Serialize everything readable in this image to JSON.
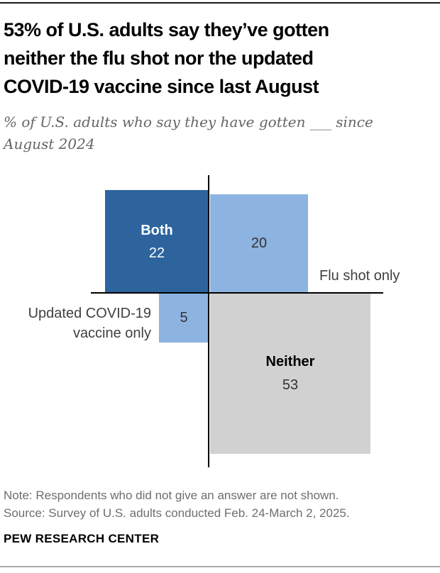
{
  "header": {
    "title_lines": [
      "53% of U.S. adults say they’ve gotten",
      "neither the flu shot nor the updated",
      "COVID-19 vaccine since last August"
    ],
    "subtitle_lines": [
      "% of U.S. adults who say they have gotten ___ since",
      "August 2024"
    ]
  },
  "chart": {
    "axis_labels": {
      "flu_shot_only": "Flu shot only",
      "updated_covid_line1": "Updated COVID-19",
      "updated_covid_line2": "vaccine only"
    },
    "squares": {
      "both": {
        "label": "Both",
        "value": "22"
      },
      "flu_shot": {
        "value": "20"
      },
      "updated_covid": {
        "value": "5"
      },
      "neither": {
        "label": "Neither",
        "value": "53"
      }
    },
    "colors": {
      "dark_blue": "#2d649e",
      "light_blue": "#8db3e0",
      "gray": "#d1d1d1",
      "axis": "#000000"
    }
  },
  "chart_data": {
    "type": "area",
    "variant": "proportional-area squares arranged in a two-axis quadrant",
    "title": "53% of U.S. adults say they’ve gotten neither the flu shot nor the updated COVID-19 vaccine since last August",
    "subtitle": "% of U.S. adults who say they have gotten ___ since August 2024",
    "categories": [
      "Both",
      "Flu shot only",
      "Updated COVID-19 vaccine only",
      "Neither"
    ],
    "values": [
      22,
      20,
      5,
      53
    ],
    "unit": "% of U.S. adults",
    "colors": [
      "#2d649e",
      "#8db3e0",
      "#8db3e0",
      "#d1d1d1"
    ],
    "legend_position": "labels on squares and axes",
    "grid": false
  },
  "footer": {
    "note": "Note: Respondents who did not give an answer are not shown.",
    "source": "Source: Survey of U.S. adults conducted Feb. 24-March 2, 2025.",
    "brand": "PEW RESEARCH CENTER"
  }
}
